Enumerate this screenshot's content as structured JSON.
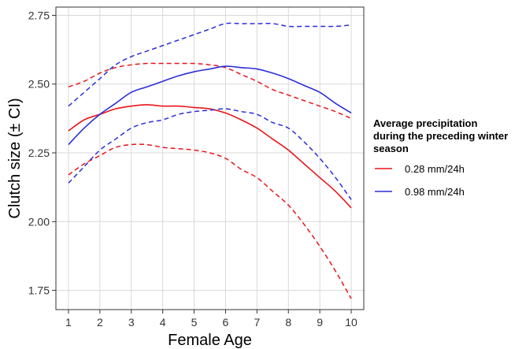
{
  "chart_data": {
    "type": "line",
    "xlabel": "Female Age",
    "ylabel": "Clutch size (± CI)",
    "x": [
      1,
      2,
      3,
      4,
      5,
      6,
      7,
      8,
      9,
      10
    ],
    "xlim": [
      0.6,
      10.4
    ],
    "ylim": [
      1.68,
      2.78
    ],
    "xticks": [
      "1",
      "2",
      "3",
      "4",
      "5",
      "6",
      "7",
      "8",
      "9",
      "10"
    ],
    "yticks": [
      "1.75",
      "2.00",
      "2.25",
      "2.50",
      "2.75"
    ],
    "grid": true,
    "legend": {
      "title_lines": [
        "Average precipitation",
        "during the preceding winter",
        "season"
      ],
      "placement": "right"
    },
    "series": [
      {
        "name": "0.28 mm/24h",
        "color": "#e8151b",
        "x": [
          1,
          1.5,
          2,
          2.5,
          3,
          3.5,
          4,
          4.5,
          5,
          5.5,
          6,
          6.5,
          7,
          7.5,
          8,
          8.5,
          9,
          9.5,
          10
        ],
        "mean": [
          2.33,
          2.37,
          2.39,
          2.41,
          2.42,
          2.425,
          2.42,
          2.42,
          2.415,
          2.41,
          2.395,
          2.37,
          2.34,
          2.3,
          2.26,
          2.21,
          2.16,
          2.11,
          2.05
        ],
        "upper": [
          2.49,
          2.51,
          2.54,
          2.56,
          2.57,
          2.575,
          2.575,
          2.575,
          2.575,
          2.57,
          2.56,
          2.535,
          2.51,
          2.48,
          2.46,
          2.44,
          2.42,
          2.4,
          2.375
        ],
        "lower": [
          2.17,
          2.21,
          2.24,
          2.27,
          2.28,
          2.28,
          2.27,
          2.265,
          2.26,
          2.25,
          2.23,
          2.19,
          2.16,
          2.11,
          2.06,
          1.99,
          1.91,
          1.82,
          1.72
        ]
      },
      {
        "name": "0.98 mm/24h",
        "color": "#2b2ed9",
        "x": [
          1,
          1.5,
          2,
          2.5,
          3,
          3.5,
          4,
          4.5,
          5,
          5.5,
          6,
          6.5,
          7,
          7.5,
          8,
          8.5,
          9,
          9.5,
          10
        ],
        "mean": [
          2.28,
          2.34,
          2.39,
          2.43,
          2.47,
          2.49,
          2.51,
          2.53,
          2.545,
          2.555,
          2.565,
          2.56,
          2.555,
          2.54,
          2.52,
          2.495,
          2.47,
          2.43,
          2.395
        ],
        "upper": [
          2.42,
          2.47,
          2.52,
          2.57,
          2.6,
          2.62,
          2.64,
          2.66,
          2.68,
          2.7,
          2.72,
          2.72,
          2.72,
          2.72,
          2.71,
          2.71,
          2.71,
          2.71,
          2.715
        ],
        "lower": [
          2.14,
          2.2,
          2.26,
          2.3,
          2.34,
          2.36,
          2.37,
          2.39,
          2.4,
          2.405,
          2.41,
          2.4,
          2.39,
          2.36,
          2.34,
          2.29,
          2.23,
          2.16,
          2.08
        ]
      }
    ]
  }
}
